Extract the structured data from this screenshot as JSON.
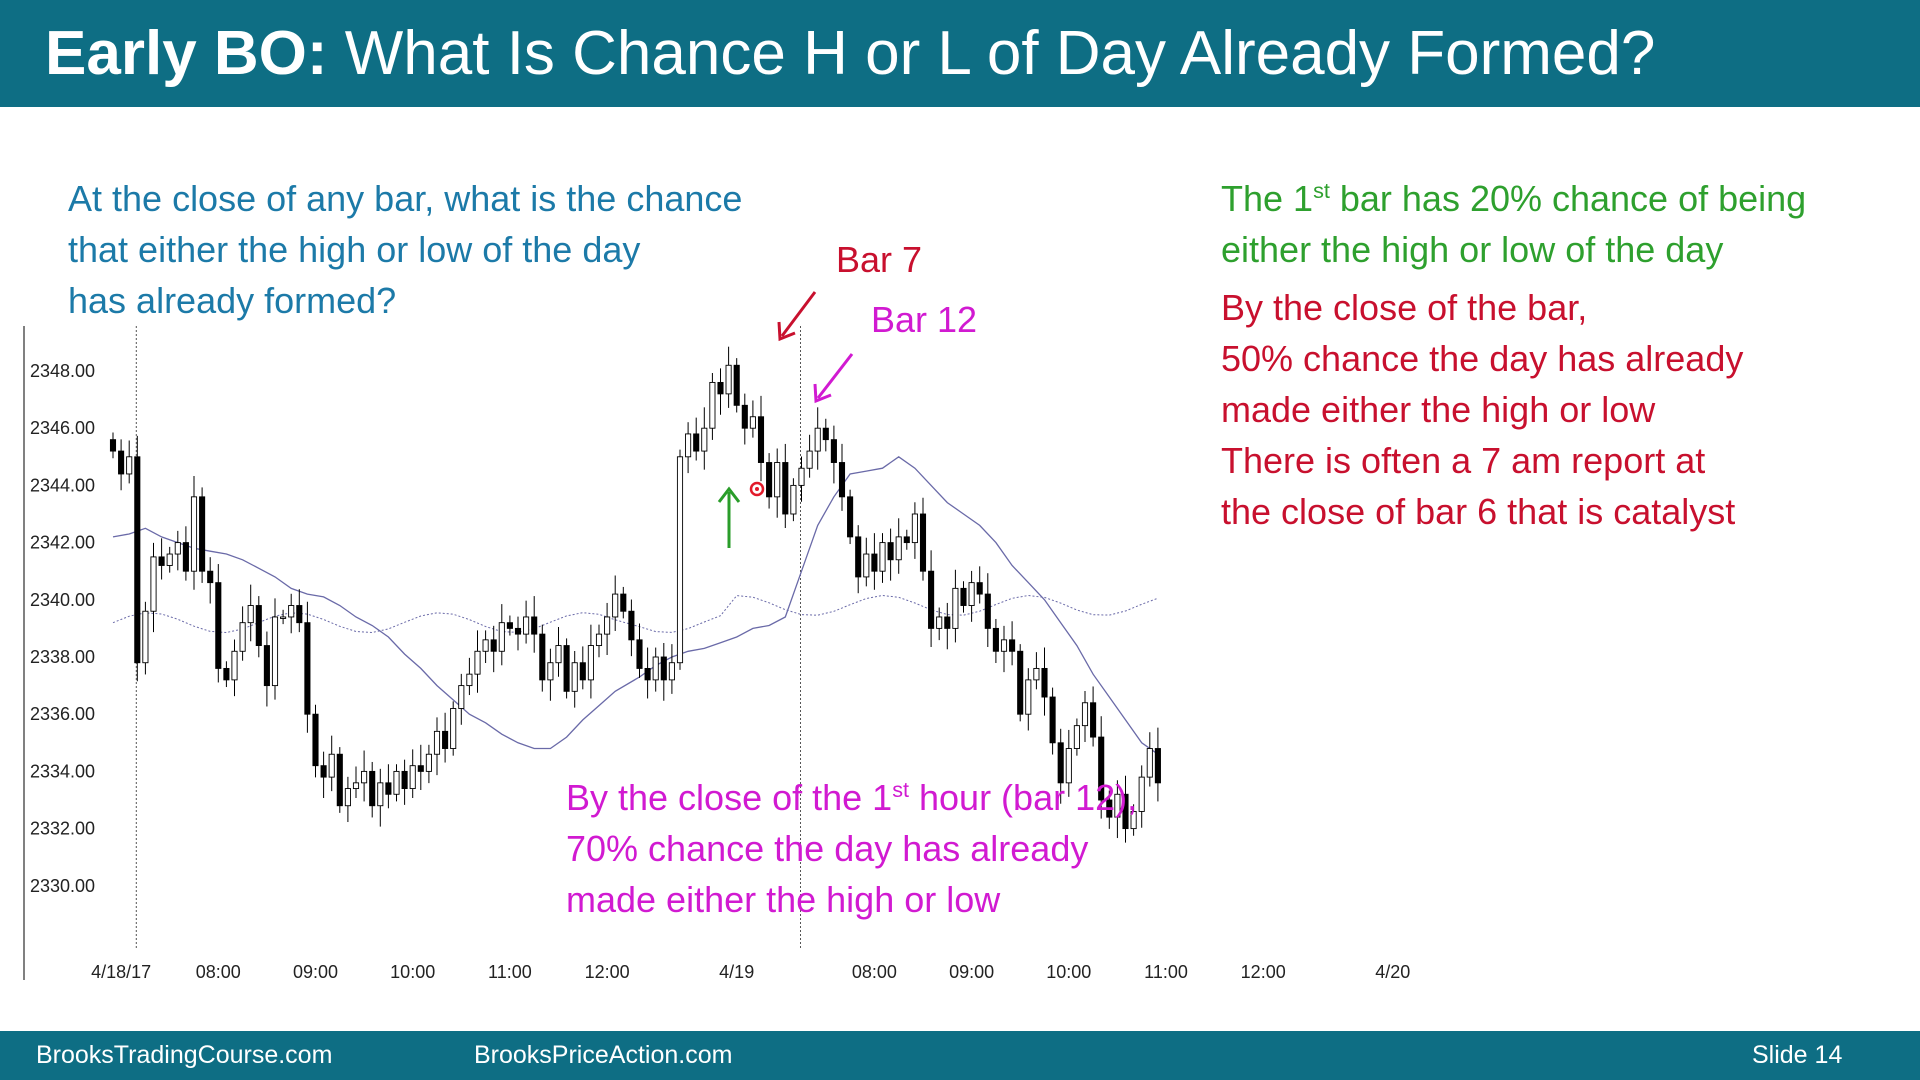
{
  "slide": {
    "title_bold": "Early BO:",
    "title_rest": " What Is Chance H or L of Day Already Formed?",
    "question_lines": [
      "At the close of any bar, what is the chance",
      "that either the high or low of the day",
      "has already formed?"
    ],
    "green_line1_pre": "The 1",
    "green_line1_sup": "st",
    "green_line1_post": " bar has 20% chance of being",
    "green_line2": "either the high or low of the day",
    "red_lines": [
      "By the close of the bar,",
      "50% chance the day has already",
      "made either the high or low",
      "There is often a 7 am report at",
      "the close of bar 6 that is catalyst"
    ],
    "magenta_line1_pre": "By the close of the 1",
    "magenta_line1_sup": "st",
    "magenta_line1_post": " hour (bar 12),",
    "magenta_lines": [
      "70% chance the day has already",
      "made either the high or low"
    ],
    "bar7_label": "Bar 7",
    "bar12_label": "Bar 12",
    "colors": {
      "header": "#0e6e84",
      "blue": "#1c7aa8",
      "green": "#2ea02e",
      "red": "#c8102e",
      "magenta": "#d11ad1"
    }
  },
  "footer": {
    "left": "BrooksTradingCourse.com",
    "middle": "BrooksPriceAction.com",
    "slide_label": "Slide  14"
  },
  "chart_data": {
    "type": "candlestick",
    "y_ticks": [
      "2348.00",
      "2346.00",
      "2344.00",
      "2342.00",
      "2340.00",
      "2338.00",
      "2336.00",
      "2334.00",
      "2332.00",
      "2330.00"
    ],
    "ylim": [
      2328.5,
      2349.5
    ],
    "x_ticks": [
      {
        "label": "4/18/17",
        "bar": 1
      },
      {
        "label": "08:00",
        "bar": 13
      },
      {
        "label": "09:00",
        "bar": 25
      },
      {
        "label": "10:00",
        "bar": 37
      },
      {
        "label": "11:00",
        "bar": 49
      },
      {
        "label": "12:00",
        "bar": 61
      },
      {
        "label": "4/19",
        "bar": 77
      },
      {
        "label": "08:00",
        "bar": 94
      },
      {
        "label": "09:00",
        "bar": 106
      },
      {
        "label": "10:00",
        "bar": 118
      },
      {
        "label": "11:00",
        "bar": 130
      },
      {
        "label": "12:00",
        "bar": 142
      },
      {
        "label": "4/20",
        "bar": 158
      }
    ],
    "session_breaks": [
      3,
      85
    ],
    "closes": [
      2345.2,
      2344.4,
      2345.0,
      2337.8,
      2339.6,
      2341.5,
      2341.2,
      2341.6,
      2342.0,
      2341.0,
      2343.6,
      2341.0,
      2340.6,
      2337.6,
      2337.2,
      2338.2,
      2339.2,
      2339.8,
      2338.4,
      2337.0,
      2339.4,
      2339.4,
      2339.8,
      2339.2,
      2336.0,
      2334.2,
      2333.8,
      2334.6,
      2332.8,
      2333.4,
      2333.6,
      2334.0,
      2332.8,
      2333.6,
      2333.2,
      2334.0,
      2333.4,
      2334.2,
      2334.0,
      2334.6,
      2335.4,
      2334.8,
      2336.2,
      2337.0,
      2337.4,
      2338.2,
      2338.6,
      2338.2,
      2339.2,
      2339.0,
      2338.8,
      2339.4,
      2338.8,
      2337.2,
      2337.8,
      2338.4,
      2336.8,
      2337.8,
      2337.2,
      2338.4,
      2338.8,
      2339.4,
      2340.2,
      2339.6,
      2338.6,
      2337.6,
      2337.2,
      2338.0,
      2337.2,
      2337.8,
      2345.0,
      2345.8,
      2345.2,
      2346.0,
      2347.6,
      2347.2,
      2348.2,
      2346.8,
      2346.0,
      2346.4,
      2344.8,
      2343.6,
      2344.8,
      2343.0,
      2344.0,
      2344.6,
      2345.2,
      2346.0,
      2345.6,
      2344.8,
      2343.6,
      2342.2,
      2340.8,
      2341.6,
      2341.0,
      2342.0,
      2341.4,
      2342.2,
      2342.0,
      2343.0,
      2341.0,
      2339.0,
      2339.4,
      2339.0,
      2340.4,
      2339.8,
      2340.6,
      2340.2,
      2339.0,
      2338.2,
      2338.6,
      2338.2,
      2336.0,
      2337.2,
      2337.6,
      2336.6,
      2335.0,
      2333.6,
      2334.8,
      2335.6,
      2336.4,
      2335.2,
      2333.0,
      2332.4,
      2333.2,
      2332.0,
      2332.6,
      2333.8,
      2334.8,
      2333.6
    ],
    "ema_approx": [
      2342.2,
      2342.3,
      2342.5,
      2342.2,
      2342.0,
      2341.8,
      2341.7,
      2341.6,
      2341.4,
      2341.1,
      2340.8,
      2340.4,
      2340.2,
      2340.1,
      2339.8,
      2339.4,
      2339.1,
      2338.7,
      2338.1,
      2337.6,
      2337.0,
      2336.5,
      2336.0,
      2335.7,
      2335.3,
      2335.0,
      2334.8,
      2334.8,
      2335.2,
      2335.8,
      2336.3,
      2336.8,
      2337.3,
      2337.7,
      2338.0,
      2338.2,
      2338.3,
      2338.5,
      2338.7,
      2339.0,
      2339.1,
      2339.4,
      2341.0,
      2342.6,
      2343.6,
      2344.4,
      2344.5,
      2344.6,
      2345.0,
      2344.6,
      2344.0,
      2343.4,
      2343.0,
      2342.6,
      2342.0,
      2341.2,
      2340.6,
      2340.0,
      2339.2,
      2338.4,
      2337.4,
      2336.6,
      2335.8,
      2335.0,
      2334.6
    ]
  }
}
